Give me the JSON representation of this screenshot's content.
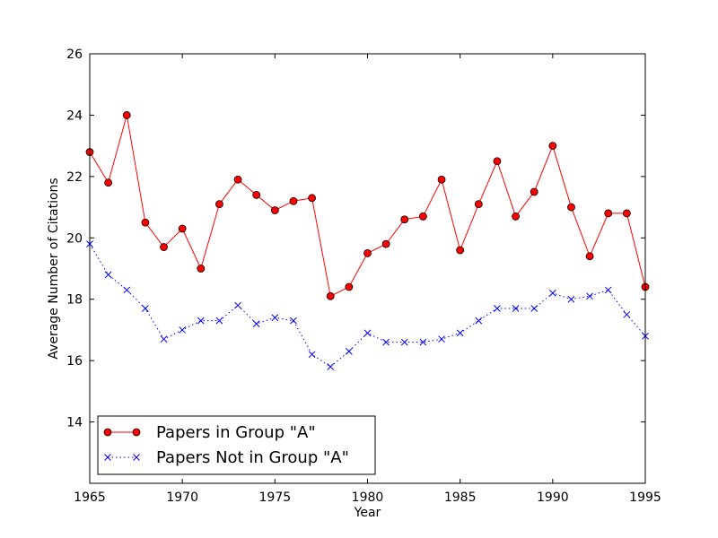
{
  "chart_data": {
    "type": "line",
    "title": "",
    "xlabel": "Year",
    "ylabel": "Average Number of Citations",
    "xlim": [
      1965,
      1995
    ],
    "ylim": [
      12,
      26
    ],
    "x_ticks": [
      1965,
      1970,
      1975,
      1980,
      1985,
      1990,
      1995
    ],
    "y_ticks": [
      14,
      16,
      18,
      20,
      22,
      24,
      26
    ],
    "grid": false,
    "legend_position": "bottom-left",
    "x": [
      1965,
      1966,
      1967,
      1968,
      1969,
      1970,
      1971,
      1972,
      1973,
      1974,
      1975,
      1976,
      1977,
      1978,
      1979,
      1980,
      1981,
      1982,
      1983,
      1984,
      1985,
      1986,
      1987,
      1988,
      1989,
      1990,
      1991,
      1992,
      1993,
      1994,
      1995
    ],
    "series": [
      {
        "name": "Papers in Group \"A\"",
        "color": "#ff0000",
        "line_style": "solid",
        "marker": "circle",
        "values": [
          22.8,
          21.8,
          24.0,
          20.5,
          19.7,
          20.3,
          19.0,
          21.1,
          21.9,
          21.4,
          20.9,
          21.2,
          21.3,
          18.1,
          18.4,
          19.5,
          19.8,
          20.6,
          20.7,
          21.9,
          19.6,
          21.1,
          22.5,
          20.7,
          21.5,
          23.0,
          21.0,
          19.4,
          20.8,
          20.8,
          18.4
        ]
      },
      {
        "name": "Papers Not in Group \"A\"",
        "color": "#0000ff",
        "line_style": "dotted",
        "marker": "x",
        "values": [
          19.8,
          18.8,
          18.3,
          17.7,
          16.7,
          17.0,
          17.3,
          17.3,
          17.8,
          17.2,
          17.4,
          17.3,
          16.2,
          15.8,
          16.3,
          16.9,
          16.6,
          16.6,
          16.6,
          16.7,
          16.9,
          17.3,
          17.7,
          17.7,
          17.7,
          18.2,
          18.0,
          18.1,
          18.3,
          17.5,
          16.8
        ]
      }
    ]
  }
}
